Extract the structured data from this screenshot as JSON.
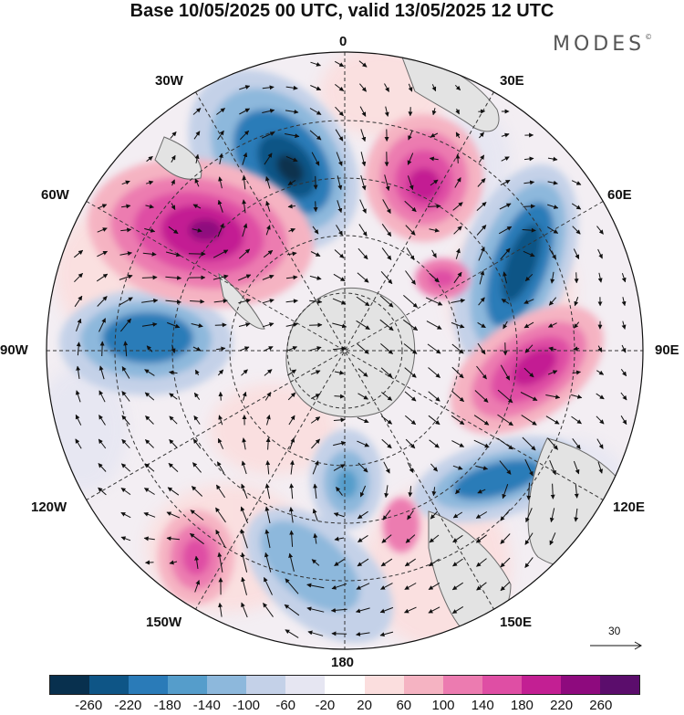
{
  "title": "Base 10/05/2025 00 UTC, valid 13/05/2025 12 UTC",
  "brand": "MODES",
  "brand_mark": "©",
  "longitude_labels": {
    "l0": "0",
    "l30e": "30E",
    "l60e": "60E",
    "l90e": "90E",
    "l120e": "120E",
    "l150e": "150E",
    "l180": "180",
    "l150w": "150W",
    "l120w": "120W",
    "l90w": "90W",
    "l60w": "60W",
    "l30w": "30W"
  },
  "reference_vector": {
    "value": "30"
  },
  "colorbar": {
    "ticks": [
      "-260",
      "-220",
      "-180",
      "-140",
      "-100",
      "-60",
      "-20",
      "20",
      "60",
      "100",
      "140",
      "180",
      "220",
      "260"
    ],
    "colors": [
      "#08304e",
      "#0e5586",
      "#2a7bb8",
      "#559dcb",
      "#8db8dc",
      "#c4d1e8",
      "#e6e6f2",
      "#ffffff",
      "#fbdede",
      "#f5b3c2",
      "#ec7bb0",
      "#df4ea4",
      "#c31f93",
      "#8e0a7e",
      "#5b0d6c"
    ]
  },
  "colors": {
    "land": "#e3e3e3",
    "coast": "#6a6a6a",
    "grid": "#333333",
    "arrow": "#111111"
  }
}
